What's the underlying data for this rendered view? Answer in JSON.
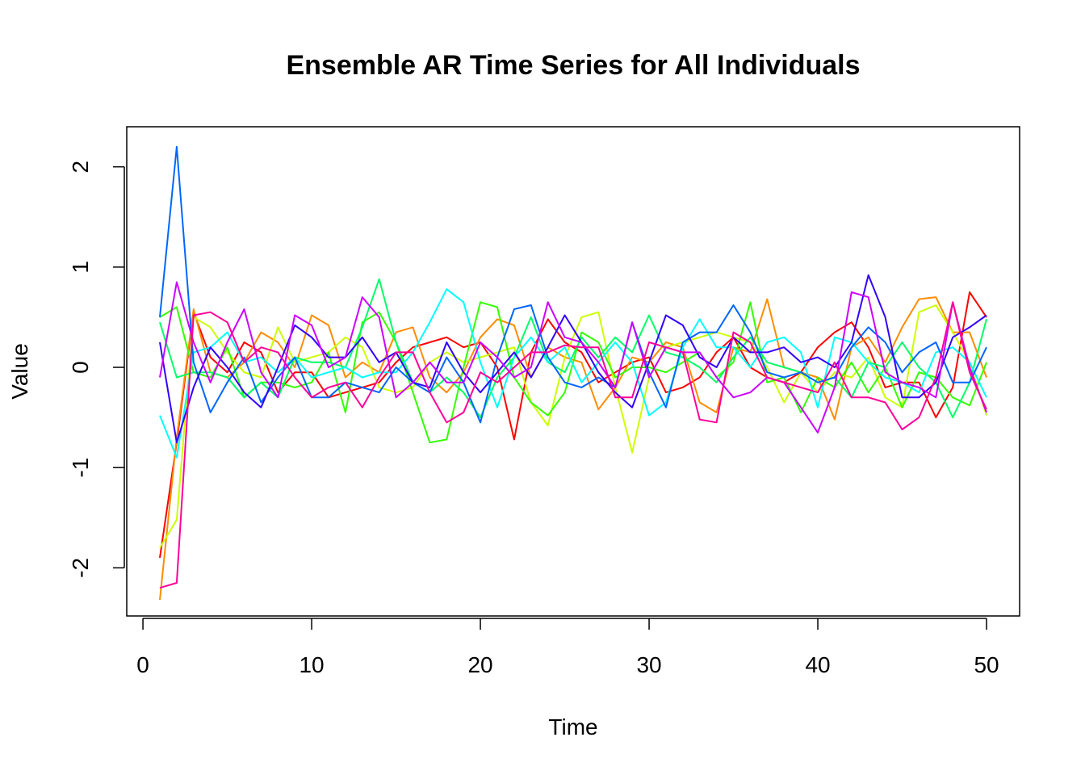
{
  "chart_data": {
    "type": "line",
    "title": "Ensemble AR Time Series for All Individuals",
    "xlabel": "Time",
    "ylabel": "Value",
    "xlim": [
      -0.96,
      51.96
    ],
    "ylim": [
      -2.48,
      2.4
    ],
    "xticks": [
      0,
      10,
      20,
      30,
      40,
      50
    ],
    "yticks": [
      -2,
      -1,
      0,
      1,
      2
    ],
    "grid": false,
    "legend": "none",
    "x": [
      1,
      2,
      3,
      4,
      5,
      6,
      7,
      8,
      9,
      10,
      11,
      12,
      13,
      14,
      15,
      16,
      17,
      18,
      19,
      20,
      21,
      22,
      23,
      24,
      25,
      26,
      27,
      28,
      29,
      30,
      31,
      32,
      33,
      34,
      35,
      36,
      37,
      38,
      39,
      40,
      41,
      42,
      43,
      44,
      45,
      46,
      47,
      48,
      49,
      50
    ],
    "series": [
      {
        "color": "#FF0000",
        "values": [
          -1.9,
          -0.75,
          0.55,
          0.1,
          -0.05,
          0.25,
          0.15,
          -0.25,
          -0.05,
          -0.05,
          -0.3,
          -0.25,
          -0.2,
          -0.15,
          0.05,
          0.2,
          0.25,
          0.3,
          0.2,
          0.25,
          0.0,
          -0.72,
          0.15,
          0.48,
          0.25,
          0.15,
          -0.15,
          -0.05,
          0.05,
          0.1,
          -0.25,
          -0.2,
          -0.1,
          0.15,
          0.3,
          0.0,
          -0.1,
          -0.15,
          -0.05,
          0.2,
          0.35,
          0.45,
          0.2,
          -0.2,
          -0.15,
          -0.15,
          -0.5,
          -0.2,
          0.75,
          0.5
        ]
      },
      {
        "color": "#FF8C00",
        "values": [
          -2.32,
          -0.7,
          0.58,
          -0.05,
          -0.1,
          0.05,
          0.35,
          0.25,
          0.0,
          0.52,
          0.42,
          -0.1,
          0.05,
          -0.05,
          0.35,
          0.4,
          -0.1,
          -0.25,
          -0.05,
          0.3,
          0.48,
          0.42,
          -0.1,
          0.2,
          0.1,
          0.05,
          -0.42,
          -0.2,
          0.1,
          0.05,
          0.25,
          0.2,
          -0.35,
          -0.45,
          0.2,
          0.15,
          0.68,
          0.0,
          -0.05,
          -0.1,
          -0.52,
          0.2,
          0.3,
          0.05,
          0.4,
          0.68,
          0.7,
          0.35,
          0.35,
          -0.1
        ]
      },
      {
        "color": "#CCFF00",
        "values": [
          -1.8,
          -1.52,
          0.5,
          0.4,
          0.15,
          -0.05,
          -0.1,
          0.4,
          0.05,
          0.1,
          0.15,
          0.3,
          0.2,
          -0.2,
          -0.25,
          -0.2,
          0.05,
          0.15,
          0.05,
          0.1,
          0.15,
          0.2,
          -0.35,
          -0.58,
          0.1,
          0.5,
          0.55,
          -0.2,
          -0.85,
          -0.1,
          0.2,
          0.25,
          0.3,
          0.35,
          0.3,
          0.25,
          0.0,
          -0.35,
          -0.05,
          -0.25,
          -0.05,
          -0.1,
          0.1,
          -0.3,
          -0.4,
          0.55,
          0.62,
          0.35,
          0.05,
          -0.48
        ]
      },
      {
        "color": "#33FF00",
        "values": [
          0.5,
          0.6,
          -0.05,
          -0.1,
          0.2,
          -0.3,
          -0.15,
          -0.15,
          -0.2,
          -0.15,
          0.15,
          -0.45,
          0.45,
          0.55,
          0.25,
          -0.25,
          -0.75,
          -0.72,
          0.0,
          0.65,
          0.6,
          -0.1,
          -0.35,
          -0.48,
          -0.25,
          0.35,
          0.25,
          -0.1,
          0.0,
          0.0,
          -0.05,
          0.05,
          0.15,
          -0.1,
          0.05,
          0.65,
          -0.15,
          -0.1,
          -0.45,
          -0.1,
          -0.2,
          0.05,
          -0.25,
          0.0,
          -0.4,
          -0.05,
          -0.1,
          -0.3,
          -0.38,
          0.05
        ]
      },
      {
        "color": "#00FF66",
        "values": [
          0.45,
          -0.1,
          -0.05,
          -0.05,
          -0.1,
          -0.3,
          -0.15,
          -0.3,
          0.1,
          0.05,
          0.05,
          0.0,
          0.4,
          0.88,
          0.25,
          -0.15,
          -0.25,
          -0.1,
          -0.25,
          -0.5,
          -0.1,
          0.1,
          0.5,
          0.05,
          -0.05,
          0.3,
          0.1,
          0.3,
          0.15,
          0.52,
          0.15,
          0.1,
          0.0,
          -0.15,
          0.1,
          0.3,
          0.05,
          0.0,
          -0.05,
          -0.15,
          -0.1,
          -0.3,
          0.05,
          0.0,
          0.25,
          0.0,
          -0.15,
          -0.5,
          -0.15,
          0.48
        ]
      },
      {
        "color": "#00FFFF",
        "values": [
          -0.48,
          -0.9,
          0.15,
          0.2,
          0.35,
          0.05,
          0.1,
          -0.05,
          0.1,
          -0.1,
          -0.05,
          0.0,
          -0.1,
          -0.05,
          -0.05,
          0.15,
          0.45,
          0.78,
          0.65,
          0.05,
          -0.4,
          0.1,
          0.3,
          0.05,
          0.2,
          -0.15,
          0.05,
          0.25,
          0.05,
          -0.48,
          -0.35,
          0.2,
          0.48,
          0.2,
          0.2,
          0.0,
          0.25,
          0.3,
          0.15,
          -0.4,
          0.3,
          0.25,
          0.05,
          -0.1,
          -0.15,
          -0.25,
          0.15,
          0.2,
          0.05,
          -0.3
        ]
      },
      {
        "color": "#0066FF",
        "values": [
          0.5,
          2.2,
          0.05,
          -0.45,
          -0.15,
          0.1,
          -0.35,
          -0.1,
          0.1,
          -0.3,
          -0.3,
          -0.15,
          -0.2,
          -0.25,
          0.0,
          -0.15,
          -0.25,
          0.1,
          -0.15,
          -0.55,
          0.1,
          0.58,
          0.62,
          0.1,
          -0.15,
          -0.2,
          -0.1,
          -0.2,
          0.45,
          -0.05,
          -0.4,
          0.25,
          0.35,
          0.35,
          0.62,
          0.35,
          -0.05,
          -0.1,
          -0.05,
          -0.15,
          -0.1,
          0.2,
          0.4,
          0.25,
          -0.05,
          0.15,
          0.25,
          -0.15,
          -0.15,
          0.2
        ]
      },
      {
        "color": "#3300FF",
        "values": [
          0.25,
          -0.75,
          -0.2,
          0.2,
          0.0,
          -0.25,
          -0.4,
          0.0,
          0.42,
          0.3,
          0.1,
          0.1,
          0.3,
          0.05,
          0.15,
          -0.15,
          -0.2,
          0.25,
          -0.05,
          -0.25,
          -0.05,
          0.15,
          -0.1,
          0.2,
          0.52,
          0.25,
          -0.05,
          -0.25,
          -0.4,
          0.05,
          0.52,
          0.42,
          0.1,
          0.0,
          0.3,
          0.15,
          0.15,
          0.2,
          0.05,
          0.1,
          0.0,
          0.25,
          0.92,
          0.5,
          -0.3,
          -0.3,
          -0.15,
          0.3,
          0.4,
          0.52
        ]
      },
      {
        "color": "#CC00FF",
        "values": [
          -0.1,
          0.85,
          0.25,
          -0.15,
          0.25,
          0.58,
          -0.05,
          -0.3,
          0.52,
          0.42,
          0.0,
          0.1,
          0.7,
          0.5,
          -0.3,
          -0.15,
          0.05,
          -0.15,
          -0.15,
          0.25,
          0.1,
          -0.1,
          0.0,
          0.65,
          0.3,
          0.25,
          0.05,
          -0.2,
          0.45,
          -0.1,
          0.2,
          0.15,
          0.15,
          -0.1,
          -0.3,
          -0.25,
          -0.1,
          -0.15,
          -0.4,
          -0.65,
          -0.2,
          0.75,
          0.7,
          -0.05,
          -0.15,
          -0.2,
          -0.3,
          0.65,
          0.0,
          -0.45
        ]
      },
      {
        "color": "#FF0099",
        "values": [
          -2.2,
          -2.15,
          0.52,
          0.55,
          0.45,
          0.05,
          0.2,
          0.15,
          -0.1,
          -0.3,
          -0.2,
          -0.15,
          -0.4,
          -0.1,
          0.15,
          0.15,
          -0.25,
          -0.55,
          -0.45,
          -0.05,
          -0.15,
          0.0,
          0.15,
          0.15,
          0.22,
          0.2,
          0.2,
          -0.3,
          -0.3,
          0.25,
          0.2,
          0.15,
          -0.52,
          -0.55,
          0.35,
          0.25,
          -0.1,
          -0.15,
          -0.2,
          -0.25,
          0.05,
          -0.3,
          -0.3,
          -0.35,
          -0.62,
          -0.5,
          -0.1,
          0.65,
          -0.05,
          -0.42
        ]
      }
    ]
  }
}
